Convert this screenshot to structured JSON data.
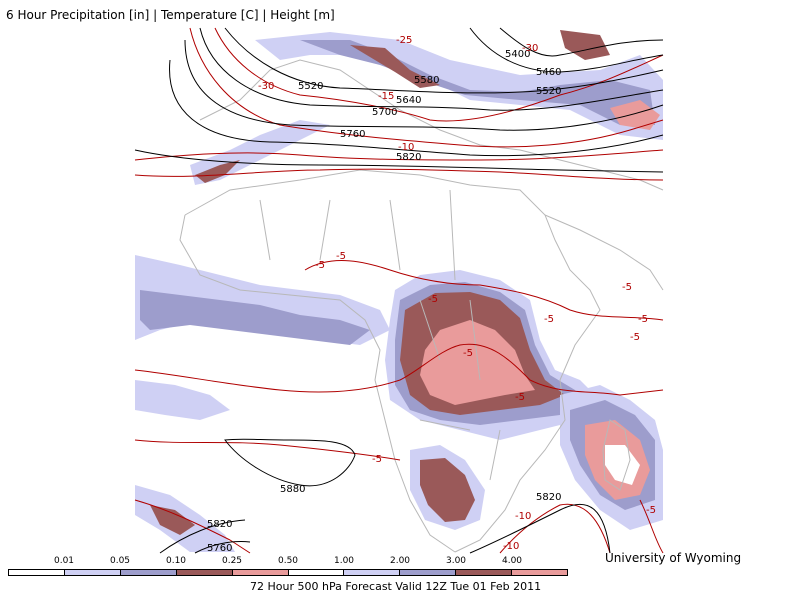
{
  "title": "6 Hour Precipitation [in] | Temperature [C] | Height [m]",
  "credit": "University of Wyoming",
  "footer": "72 Hour 500 hPa Forecast Valid 12Z Tue 01 Feb 2011",
  "scale": {
    "labels": [
      "0.01",
      "0.05",
      "0.10",
      "0.25",
      "0.50",
      "1.00",
      "2.00",
      "3.00",
      "4.00"
    ],
    "colors": [
      "#ffffff",
      "#cfd0f4",
      "#9d9dcc",
      "#9a5959",
      "#e99b9b",
      "#ffffff",
      "#cfd0f4",
      "#9d9dcc",
      "#9a5959",
      "#e99b9b"
    ]
  },
  "height_labels": [
    "5400",
    "5460",
    "5520",
    "5520",
    "5580",
    "5640",
    "5700",
    "5760",
    "5820",
    "5880",
    "5820",
    "5820",
    "5760"
  ],
  "temp_labels": [
    "-30",
    "-25",
    "-30",
    "-15",
    "-10",
    "-5",
    "-5",
    "-5",
    "-5",
    "-5",
    "-5",
    "-5",
    "-5",
    "-5",
    "-5",
    "-10",
    "-10",
    "-5"
  ]
}
